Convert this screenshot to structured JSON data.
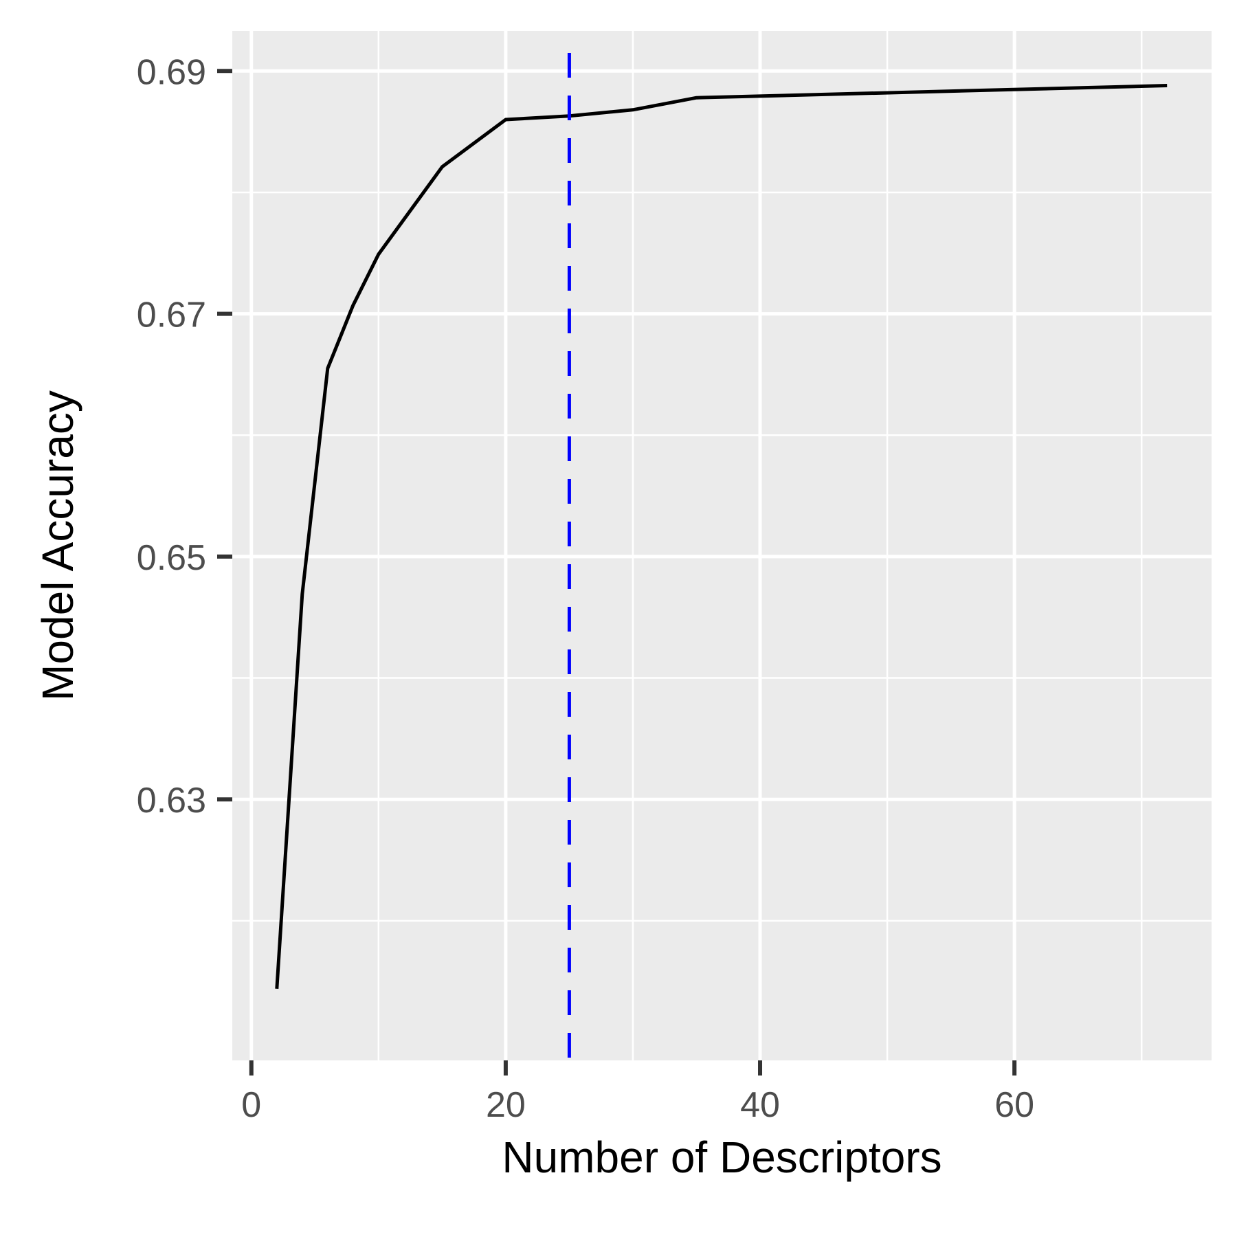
{
  "chart_data": {
    "type": "line",
    "title": "",
    "xlabel": "Number of Descriptors",
    "ylabel": "Model Accuracy",
    "xlim": [
      -1.5,
      75.5
    ],
    "ylim": [
      0.6085,
      0.6933
    ],
    "x_ticks": [
      0,
      20,
      40,
      60
    ],
    "x_tick_labels": [
      "0",
      "20",
      "40",
      "60"
    ],
    "x_minor_ticks": [
      10,
      30,
      50,
      70
    ],
    "y_ticks": [
      0.63,
      0.65,
      0.67,
      0.69
    ],
    "y_tick_labels": [
      "0.63",
      "0.65",
      "0.67",
      "0.69"
    ],
    "y_minor_ticks": [
      0.62,
      0.64,
      0.66,
      0.68
    ],
    "grid": true,
    "series": [
      {
        "color": "#000000",
        "x": [
          2,
          4,
          6,
          8,
          10,
          15,
          20,
          25,
          30,
          35,
          72
        ],
        "y": [
          0.6144,
          0.6469,
          0.6655,
          0.6707,
          0.6749,
          0.6821,
          0.686,
          0.6863,
          0.6868,
          0.6878,
          0.6888
        ]
      }
    ],
    "vline": {
      "x": 25,
      "color": "#0000ff",
      "style": "dashed"
    },
    "colors": {
      "panel_background": "#ebebeb",
      "grid": "#ffffff",
      "tick_label": "#4d4d4d",
      "tick_mark": "#333333",
      "line": "#000000",
      "vline": "#0000ff"
    }
  }
}
